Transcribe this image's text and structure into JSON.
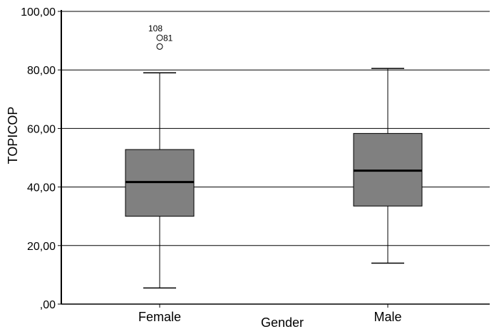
{
  "chart_data": {
    "type": "boxplot",
    "xlabel": "Gender",
    "ylabel": "TOPICOP",
    "ylim": [
      0,
      100
    ],
    "y_ticks": [
      {
        "value": 0,
        "label": ",00"
      },
      {
        "value": 20,
        "label": "20,00"
      },
      {
        "value": 40,
        "label": "40,00"
      },
      {
        "value": 60,
        "label": "60,00"
      },
      {
        "value": 80,
        "label": "80,00"
      },
      {
        "value": 100,
        "label": "100,00"
      }
    ],
    "grid": "horizontal",
    "box_color": "#808080",
    "categories": [
      "Female",
      "Male"
    ],
    "boxes": [
      {
        "category": "Female",
        "whisker_low": 5.5,
        "q1": 30.0,
        "median": 41.7,
        "q3": 52.8,
        "whisker_high": 79.0,
        "outliers": [
          {
            "label": "108",
            "value": 91.0
          },
          {
            "label": "81",
            "value": 88.0
          }
        ]
      },
      {
        "category": "Male",
        "whisker_low": 14.0,
        "q1": 33.5,
        "median": 45.6,
        "q3": 58.3,
        "whisker_high": 80.5,
        "outliers": []
      }
    ]
  }
}
